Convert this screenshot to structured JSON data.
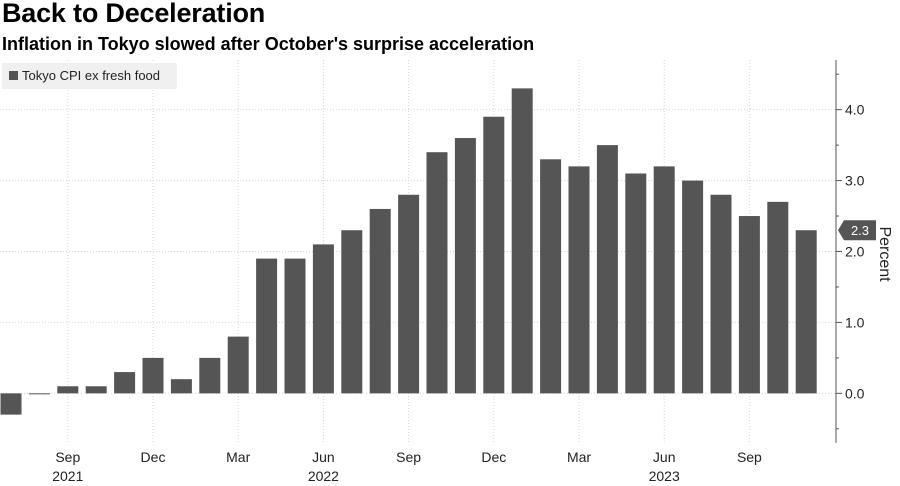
{
  "title": "Back to Deceleration",
  "subtitle": "Inflation in Tokyo slowed after October's surprise acceleration",
  "colors": {
    "bar": "#555555",
    "grid": "#d6d6d6",
    "axis": "#555555",
    "marker_bg": "#555555",
    "legend_bg": "#f0f0f0"
  },
  "chart_data": {
    "type": "bar",
    "series": [
      {
        "name": "Tokyo CPI ex fresh food",
        "values": [
          -0.3,
          0.0,
          0.1,
          0.1,
          0.3,
          0.5,
          0.2,
          0.5,
          0.8,
          1.9,
          1.9,
          2.1,
          2.3,
          2.6,
          2.8,
          3.4,
          3.6,
          3.9,
          4.3,
          3.3,
          3.2,
          3.5,
          3.1,
          3.2,
          3.0,
          2.8,
          2.5,
          2.7,
          2.3
        ]
      }
    ],
    "categories": [
      "2021-07",
      "2021-08",
      "2021-09",
      "2021-10",
      "2021-11",
      "2021-12",
      "2022-01",
      "2022-02",
      "2022-03",
      "2022-04",
      "2022-05",
      "2022-06",
      "2022-07",
      "2022-08",
      "2022-09",
      "2022-10",
      "2022-11",
      "2022-12",
      "2023-01",
      "2023-02",
      "2023-03",
      "2023-04",
      "2023-05",
      "2023-06",
      "2023-07",
      "2023-08",
      "2023-09",
      "2023-10",
      "2023-11"
    ],
    "ylabel": "Percent",
    "ylim": [
      -0.7,
      4.7
    ],
    "yticks": [
      {
        "value": 0.0,
        "label": "0.0"
      },
      {
        "value": 1.0,
        "label": "1.0"
      },
      {
        "value": 2.0,
        "label": "2.0"
      },
      {
        "value": 3.0,
        "label": "3.0"
      },
      {
        "value": 4.0,
        "label": "4.0"
      }
    ],
    "xticks": [
      {
        "index": 2,
        "label": "Sep",
        "year": "2021"
      },
      {
        "index": 5,
        "label": "Dec",
        "year": ""
      },
      {
        "index": 8,
        "label": "Mar",
        "year": ""
      },
      {
        "index": 11,
        "label": "Jun",
        "year": "2022"
      },
      {
        "index": 14,
        "label": "Sep",
        "year": ""
      },
      {
        "index": 17,
        "label": "Dec",
        "year": ""
      },
      {
        "index": 20,
        "label": "Mar",
        "year": ""
      },
      {
        "index": 23,
        "label": "Jun",
        "year": "2023"
      },
      {
        "index": 26,
        "label": "Sep",
        "year": ""
      }
    ],
    "last_value_label": "2.3",
    "legend_position": "top-left",
    "grid": true
  }
}
